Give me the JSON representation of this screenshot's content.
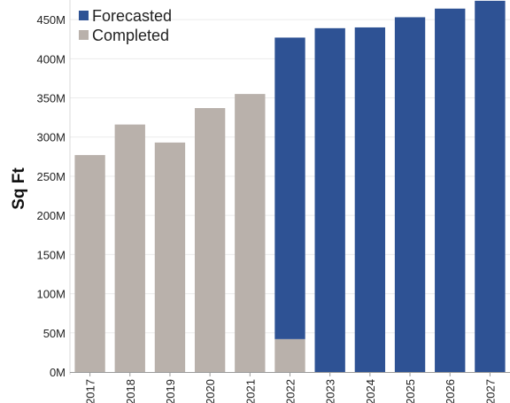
{
  "chart_data": {
    "type": "bar",
    "stacked": true,
    "categories": [
      "2017",
      "2018",
      "2019",
      "2020",
      "2021",
      "2022",
      "2023",
      "2024",
      "2025",
      "2026",
      "2027"
    ],
    "series": [
      {
        "name": "Completed",
        "color": "#b9b1ab",
        "values": [
          277,
          316,
          293,
          337,
          355,
          42,
          0,
          0,
          0,
          0,
          0
        ]
      },
      {
        "name": "Forecasted",
        "color": "#2e5294",
        "values": [
          0,
          0,
          0,
          0,
          0,
          385,
          439,
          440,
          453,
          464,
          474
        ]
      }
    ],
    "ylabel": "Sq Ft",
    "xlabel": "",
    "ylim": [
      0,
      475
    ],
    "yticks": [
      0,
      50,
      100,
      150,
      200,
      250,
      300,
      350,
      400,
      450
    ],
    "ytick_labels": [
      "0M",
      "50M",
      "100M",
      "150M",
      "200M",
      "250M",
      "300M",
      "350M",
      "400M",
      "450M"
    ],
    "grid": true,
    "legend_position": "top-left",
    "legend_order": [
      "Forecasted",
      "Completed"
    ]
  }
}
